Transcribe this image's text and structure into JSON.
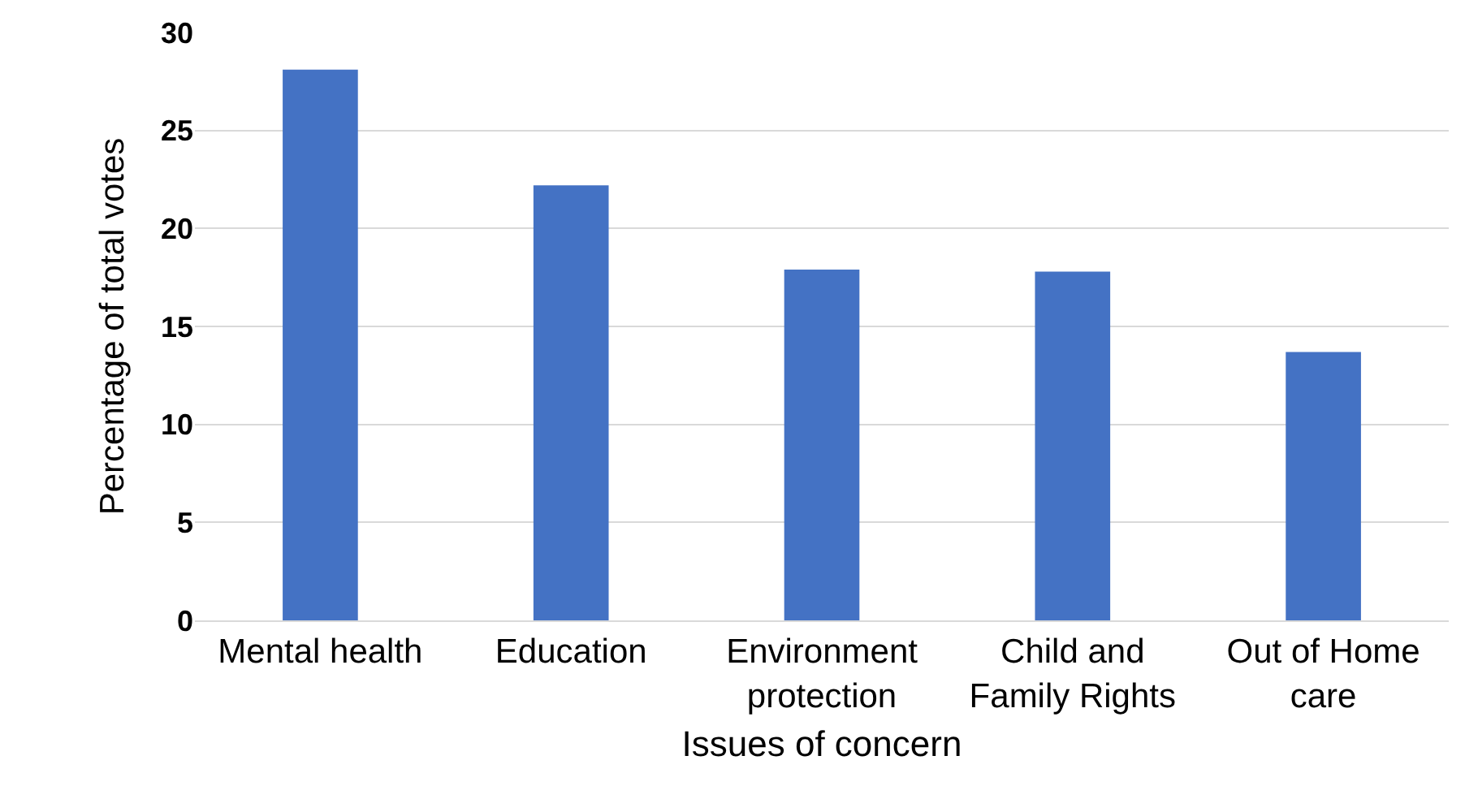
{
  "chart_data": {
    "type": "bar",
    "xlabel": "Issues of concern",
    "ylabel": "Percentage of total votes",
    "categories": [
      "Mental health",
      "Education",
      "Environment protection",
      "Child and Family Rights",
      "Out of Home care"
    ],
    "values": [
      28.1,
      22.2,
      17.9,
      17.8,
      13.7
    ],
    "color": "#4472c4",
    "ylim": [
      0,
      30
    ],
    "yticks": [
      0,
      5,
      10,
      15,
      20,
      25,
      30
    ],
    "grid": "y"
  }
}
